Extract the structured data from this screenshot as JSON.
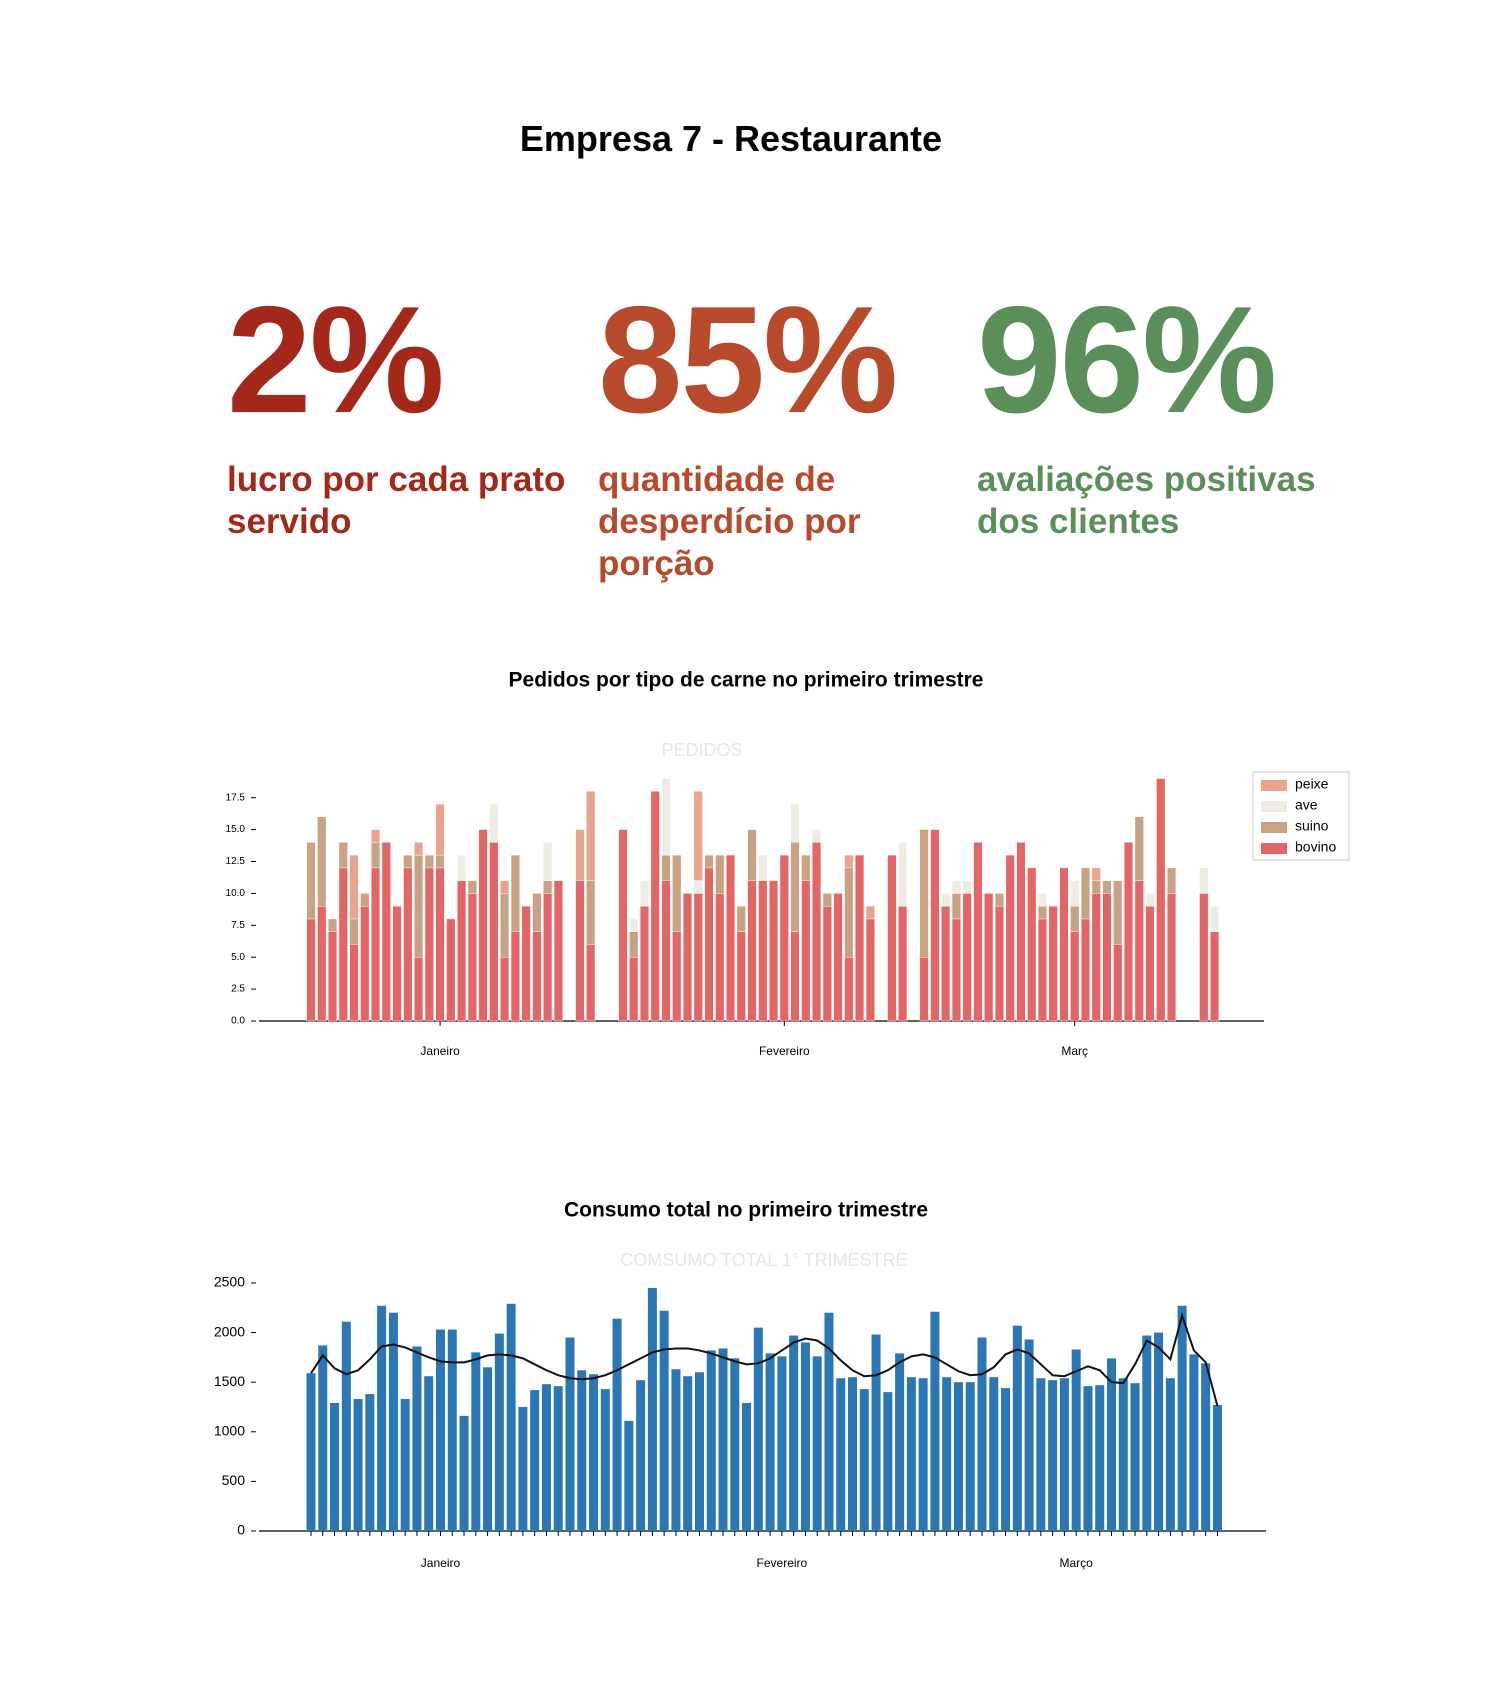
{
  "header": {
    "title": "Empresa 7 - Restaurante"
  },
  "kpis": [
    {
      "value": "2%",
      "label": "lucro por cada prato servido",
      "color": "#a4281a"
    },
    {
      "value": "85%",
      "label": "quantidade de desperdício por porção",
      "color": "#b84a2c"
    },
    {
      "value": "96%",
      "label": "avaliações positivas dos clientes",
      "color": "#5a8f5a"
    }
  ],
  "chart_data": [
    {
      "type": "stacked_bar",
      "title": "Pedidos por tipo de carne no primeiro trimestre",
      "watermark": "PEDIDOS",
      "categories": [
        null,
        null,
        null,
        null,
        null,
        null,
        null,
        null,
        null,
        null,
        null,
        null,
        "Janeiro",
        null,
        null,
        null,
        null,
        null,
        null,
        null,
        null,
        null,
        null,
        null,
        null,
        null,
        null,
        null,
        null,
        null,
        null,
        null,
        null,
        null,
        null,
        null,
        null,
        null,
        null,
        null,
        null,
        null,
        null,
        null,
        "Fevereiro",
        null,
        null,
        null,
        null,
        null,
        null,
        null,
        null,
        null,
        null,
        null,
        null,
        null,
        null,
        null,
        null,
        null,
        null,
        null,
        null,
        null,
        null,
        null,
        null,
        null,
        null,
        "Març",
        null,
        null,
        null,
        null,
        null,
        null,
        null,
        null,
        null,
        null,
        null,
        null,
        null
      ],
      "series": [
        {
          "name": "peixe",
          "color": "#e8a48e",
          "values": [
            0,
            0,
            0,
            0,
            5,
            0,
            1,
            0,
            0,
            0,
            1,
            0,
            4,
            0,
            0,
            0,
            0,
            0,
            1,
            0,
            0,
            0,
            0,
            0,
            null,
            4,
            7,
            null,
            null,
            0,
            0,
            0,
            0,
            0,
            0,
            0,
            7,
            0,
            0,
            0,
            0,
            0,
            0,
            0,
            0,
            0,
            0,
            0,
            0,
            0,
            1,
            0,
            1,
            null,
            0,
            0,
            null,
            0,
            0,
            0,
            0,
            0,
            0,
            0,
            0,
            0,
            0,
            0,
            0,
            0,
            0,
            0,
            0,
            1,
            0,
            0,
            0,
            0,
            0,
            0,
            0,
            null,
            null,
            0,
            0
          ]
        },
        {
          "name": "ave",
          "color": "#efece3",
          "values": [
            0,
            0,
            0,
            0,
            0,
            0,
            0,
            0,
            0,
            0,
            0,
            0,
            0,
            0,
            2,
            0,
            0,
            3,
            0,
            0,
            0,
            0,
            3,
            0,
            null,
            0,
            0,
            null,
            null,
            0,
            1,
            2,
            0,
            6,
            0,
            0,
            1,
            0,
            0,
            0,
            0,
            0,
            2,
            0,
            0,
            3,
            0,
            1,
            0,
            0,
            0,
            0,
            0,
            null,
            0,
            5,
            null,
            0,
            0,
            1,
            1,
            1,
            0,
            0,
            0,
            0,
            0,
            0,
            1,
            0,
            0,
            2,
            0,
            0,
            0,
            0,
            0,
            0,
            1,
            0,
            0,
            null,
            null,
            2,
            2
          ]
        },
        {
          "name": "suino",
          "color": "#c9a183",
          "values": [
            6,
            7,
            1,
            2,
            2,
            1,
            2,
            0,
            0,
            1,
            8,
            1,
            1,
            0,
            0,
            1,
            0,
            0,
            5,
            6,
            0,
            3,
            1,
            0,
            null,
            0,
            5,
            null,
            null,
            0,
            2,
            0,
            0,
            2,
            6,
            0,
            0,
            1,
            3,
            0,
            2,
            4,
            0,
            0,
            0,
            7,
            2,
            0,
            1,
            0,
            7,
            0,
            0,
            null,
            0,
            0,
            null,
            10,
            0,
            0,
            2,
            0,
            0,
            0,
            1,
            0,
            0,
            0,
            1,
            0,
            0,
            2,
            4,
            1,
            1,
            5,
            0,
            5,
            0,
            0,
            2,
            null,
            null,
            0,
            0
          ]
        },
        {
          "name": "bovino",
          "color": "#e26666",
          "values": [
            8,
            9,
            7,
            12,
            6,
            9,
            12,
            14,
            9,
            12,
            5,
            12,
            12,
            8,
            11,
            10,
            15,
            14,
            5,
            7,
            9,
            7,
            10,
            11,
            null,
            11,
            6,
            null,
            null,
            15,
            5,
            9,
            18,
            11,
            7,
            10,
            10,
            12,
            10,
            13,
            7,
            11,
            11,
            11,
            13,
            7,
            11,
            14,
            9,
            10,
            5,
            13,
            8,
            null,
            13,
            9,
            null,
            5,
            15,
            9,
            8,
            10,
            14,
            10,
            9,
            13,
            14,
            12,
            8,
            9,
            12,
            7,
            8,
            10,
            10,
            6,
            14,
            11,
            9,
            19,
            10,
            null,
            null,
            10,
            7
          ]
        }
      ],
      "ylim": [
        0,
        19.2
      ],
      "yticks": [
        {
          "value": 0,
          "label": "0.0"
        },
        2.5,
        {
          "value": 5,
          "label": "5.0"
        },
        7.5,
        {
          "value": 10,
          "label": "10.0"
        },
        12.5,
        {
          "value": 15,
          "label": "15.0"
        },
        17.5
      ],
      "legend": "upper-right",
      "grid": false
    },
    {
      "type": "bar",
      "title": "Consumo total no primeiro trimestre",
      "watermark": "COMSUMO TOTAL 1° TRIMESTRE",
      "categories": [
        null,
        null,
        null,
        null,
        null,
        null,
        null,
        null,
        null,
        null,
        null,
        "Janeiro",
        null,
        null,
        null,
        null,
        null,
        null,
        null,
        null,
        null,
        null,
        null,
        null,
        null,
        null,
        null,
        null,
        null,
        null,
        null,
        null,
        null,
        null,
        null,
        null,
        null,
        null,
        null,
        null,
        "Fevereiro",
        null,
        null,
        null,
        null,
        null,
        null,
        null,
        null,
        null,
        null,
        null,
        null,
        null,
        null,
        null,
        null,
        null,
        null,
        null,
        null,
        null,
        null,
        null,
        null,
        "Março",
        null,
        null,
        null,
        null,
        null,
        null,
        null,
        null,
        null,
        null,
        null,
        null
      ],
      "series": [
        {
          "color": "#2a77b4",
          "values": [
            1590,
            1870,
            1290,
            2110,
            1330,
            1380,
            2270,
            2200,
            1330,
            1860,
            1560,
            2030,
            2030,
            1160,
            1800,
            1650,
            1990,
            2290,
            1250,
            1420,
            1480,
            1460,
            1950,
            1620,
            1580,
            1430,
            2140,
            1110,
            1520,
            2450,
            2220,
            1630,
            1560,
            1600,
            1820,
            1840,
            1740,
            1290,
            2050,
            1790,
            1760,
            1970,
            1900,
            1760,
            2200,
            1540,
            1550,
            1430,
            1980,
            1400,
            1790,
            1550,
            1540,
            2210,
            1550,
            1500,
            1500,
            1950,
            1550,
            1440,
            2070,
            1930,
            1540,
            1520,
            1540,
            1830,
            1460,
            1470,
            1740,
            1540,
            1490,
            1970,
            2000,
            1540,
            2270,
            1780,
            1690,
            1270
          ]
        },
        {
          "type": "line",
          "color": "#111111",
          "values": [
            1590,
            1770,
            1640,
            1580,
            1620,
            1730,
            1860,
            1880,
            1850,
            1800,
            1750,
            1710,
            1700,
            1700,
            1730,
            1770,
            1780,
            1770,
            1740,
            1680,
            1620,
            1570,
            1540,
            1530,
            1540,
            1570,
            1620,
            1680,
            1740,
            1800,
            1830,
            1840,
            1840,
            1820,
            1790,
            1750,
            1710,
            1680,
            1690,
            1740,
            1820,
            1900,
            1940,
            1920,
            1840,
            1720,
            1620,
            1560,
            1570,
            1620,
            1700,
            1760,
            1780,
            1750,
            1680,
            1610,
            1570,
            1580,
            1650,
            1780,
            1830,
            1790,
            1680,
            1570,
            1560,
            1610,
            1660,
            1620,
            1500,
            1490,
            1680,
            1920,
            1850,
            1730,
            2170,
            1820,
            1700,
            1260
          ]
        }
      ],
      "ylim": [
        0,
        2550
      ],
      "yticks": [
        0,
        500,
        1000,
        1500,
        2000,
        2500
      ],
      "grid": false
    }
  ]
}
